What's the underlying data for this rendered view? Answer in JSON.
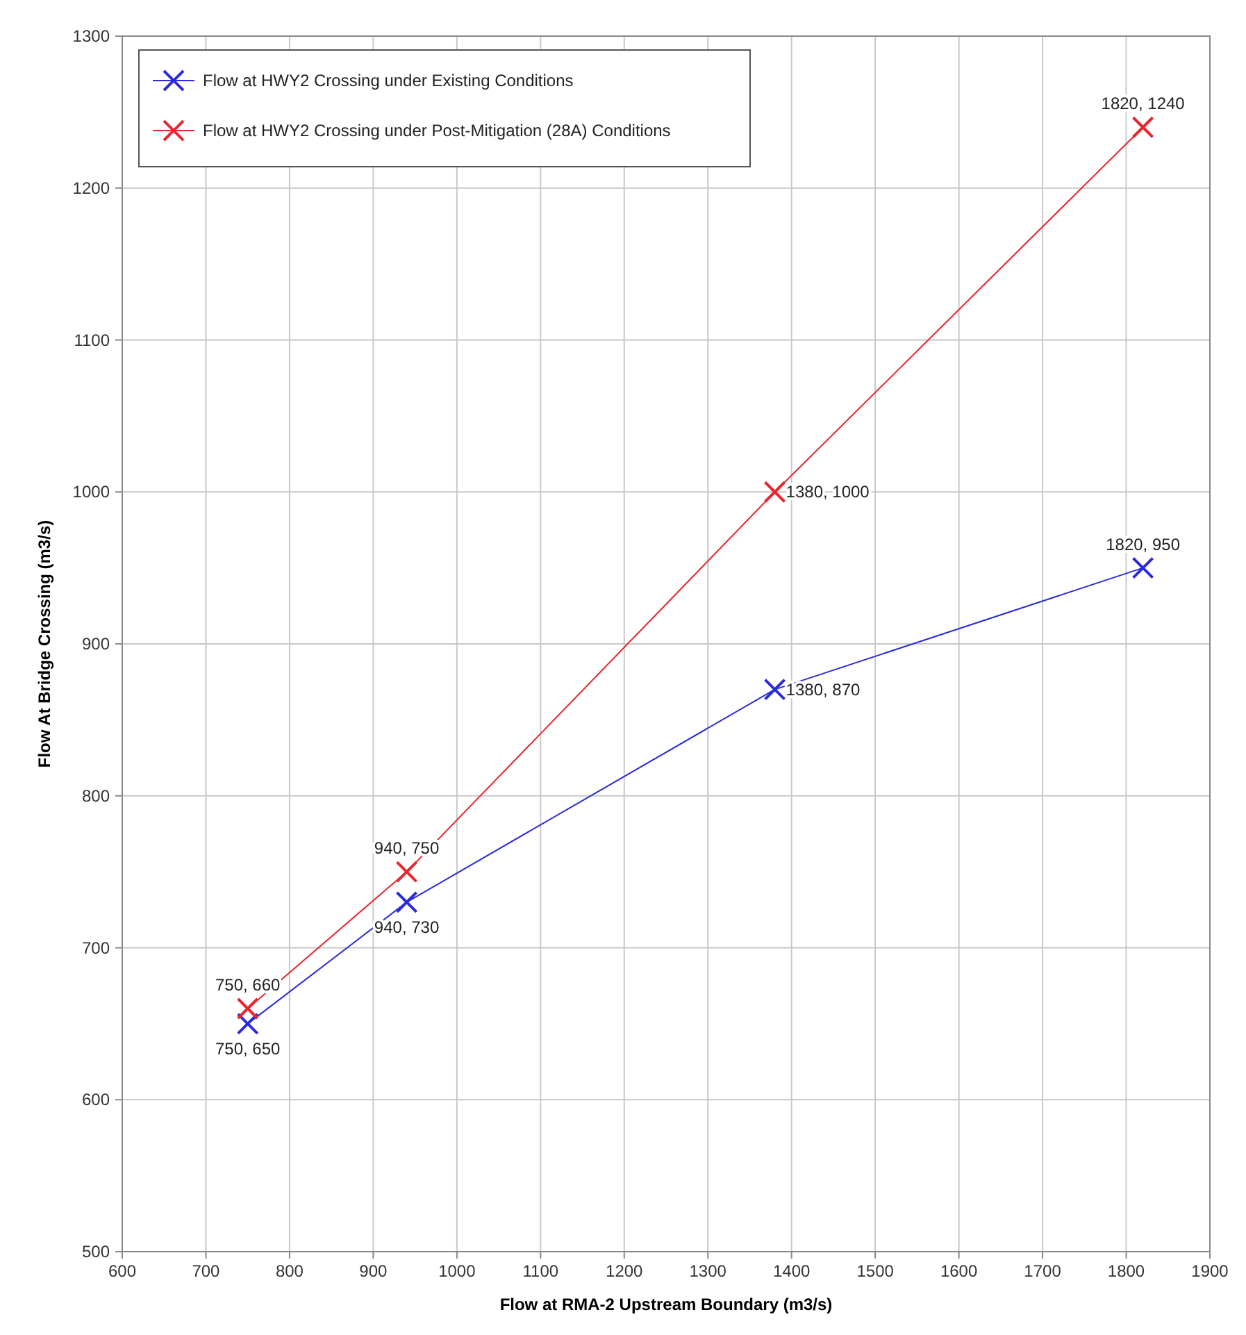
{
  "chart_data": {
    "type": "line",
    "xlabel": "Flow at RMA-2 Upstream Boundary (m3/s)",
    "ylabel": "Flow At Bridge Crossing (m3/s)",
    "xlim": [
      600,
      1900
    ],
    "xticks": [
      600,
      700,
      800,
      900,
      1000,
      1100,
      1200,
      1300,
      1400,
      1500,
      1600,
      1700,
      1800,
      1900
    ],
    "ylim": [
      500,
      1300
    ],
    "yticks": [
      500,
      600,
      700,
      800,
      900,
      1000,
      1100,
      1200,
      1300
    ],
    "grid": true,
    "legend": "top left",
    "marker": "cross",
    "line_style": "solid",
    "series": [
      {
        "name": "Flow at HWY2 Crossing under Existing Conditions",
        "color": "#2a2ae0",
        "x": [
          750,
          940,
          1380,
          1820
        ],
        "values": [
          650,
          730,
          870,
          950
        ],
        "value_labels": [
          "750, 650",
          "940, 730",
          "1380, 870",
          "1820, 950"
        ]
      },
      {
        "name": "Flow at HWY2 Crossing under Post-Mitigation (28A) Conditions",
        "color": "#e8262e",
        "x": [
          750,
          940,
          1380,
          1820
        ],
        "values": [
          660,
          750,
          1000,
          1240
        ],
        "value_labels": [
          "750, 660",
          "940, 750",
          "1380, 1000",
          "1820, 1240"
        ]
      }
    ]
  }
}
